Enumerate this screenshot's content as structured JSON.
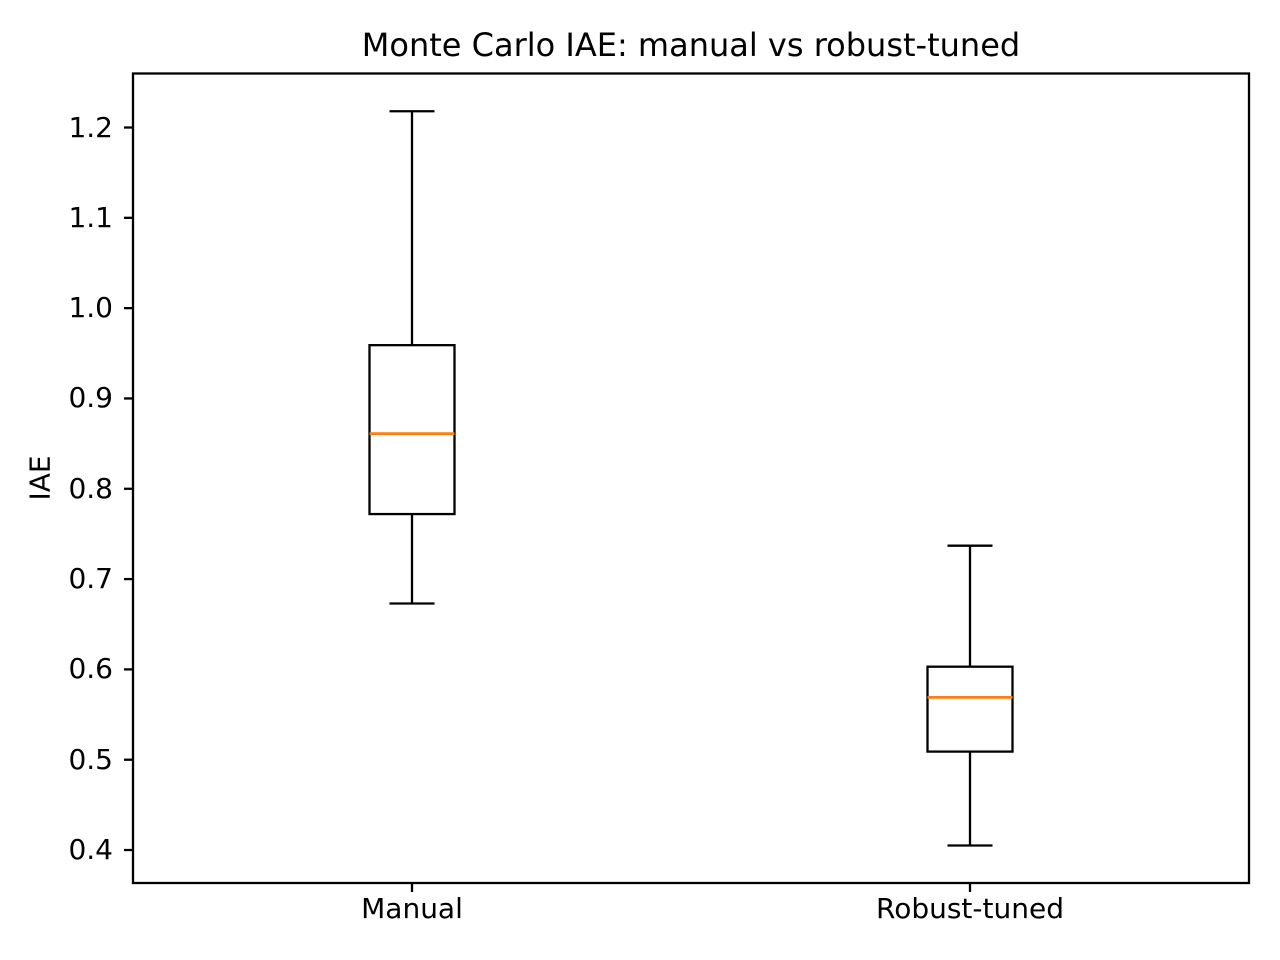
{
  "chart_data": {
    "type": "boxplot",
    "title": "Monte Carlo IAE: manual vs robust-tuned",
    "ylabel": "IAE",
    "xlabel": "",
    "categories": [
      "Manual",
      "Robust-tuned"
    ],
    "ylim": [
      0.3635,
      1.2598
    ],
    "yticks": [
      0.4,
      0.5,
      0.6,
      0.7,
      0.8,
      0.9,
      1.0,
      1.1,
      1.2
    ],
    "ytick_decimals": 1,
    "grid": false,
    "legend_position": "none",
    "colors": {
      "box_edge": "#000000",
      "median": "#ff7f0e",
      "box_fill": "#ffffff",
      "text": "#000000",
      "background": "#ffffff"
    },
    "series": [
      {
        "name": "Manual",
        "whisker_low": 0.673,
        "q1": 0.772,
        "median": 0.861,
        "q3": 0.959,
        "whisker_high": 1.218
      },
      {
        "name": "Robust-tuned",
        "whisker_low": 0.405,
        "q1": 0.509,
        "median": 0.569,
        "q3": 0.603,
        "whisker_high": 0.737
      }
    ]
  }
}
